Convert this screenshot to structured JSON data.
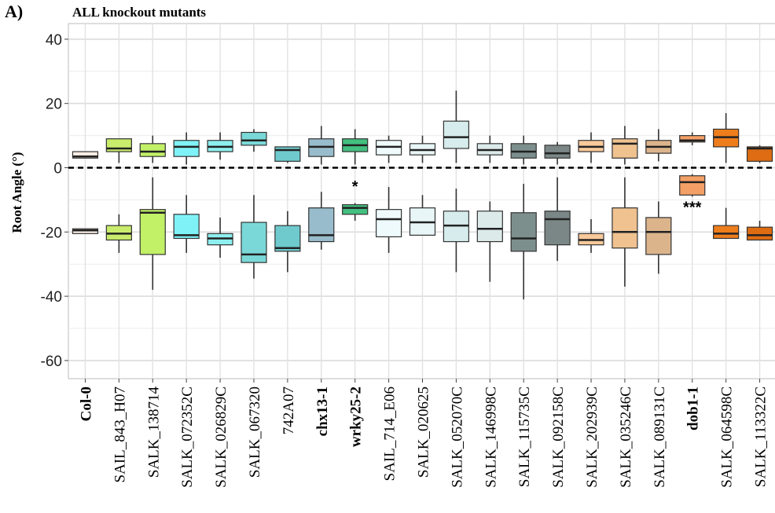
{
  "panel_label": "A)",
  "chart_data": {
    "type": "boxplot",
    "title": "ALL knockout mutants",
    "xlabel": "",
    "ylabel": "Root Angle (°)",
    "ylim": [
      -65,
      44
    ],
    "yticks": [
      40,
      20,
      0,
      -20,
      -40,
      -60
    ],
    "grid": true,
    "reference_line": {
      "y": 0,
      "style": "dashed"
    },
    "categories": [
      "Col-0",
      "SAIL_843_H07",
      "SALK_138714",
      "SALK_072352C",
      "SALK_026829C",
      "SALK_067320",
      "742A07",
      "chx13-1",
      "wrky25-2",
      "SAIL_714_E06",
      "SALK_020625",
      "SALK_052070C",
      "SALK_146998C",
      "SALK_115735C",
      "SALK_092158C",
      "SALK_202939C",
      "SALK_035246C",
      "SALK_089131C",
      "dob1-1",
      "SALK_064598C",
      "SALK_113322C"
    ],
    "bold_categories": [
      "Col-0",
      "chx13-1",
      "wrky25-2",
      "dob1-1"
    ],
    "colors": [
      "#fbeee6",
      "#c9ec6c",
      "#c2f067",
      "#7ff2f7",
      "#8eefef",
      "#7ad9d8",
      "#6ecacd",
      "#98bccc",
      "#43c07f",
      "#eefafb",
      "#e8f6f7",
      "#d7ecec",
      "#dceaea",
      "#7d8f8c",
      "#7a8786",
      "#f8c99a",
      "#efc290",
      "#dcb48c",
      "#f3a066",
      "#ee7d1c",
      "#de6c12"
    ],
    "series": [
      {
        "name": "",
        "boxes": [
          {
            "whisker_low": 3,
            "q1": 3,
            "median": 3.5,
            "q3": 5,
            "whisker_high": 5
          },
          {
            "whisker_low": 1.5,
            "q1": 5,
            "median": 6,
            "q3": 9,
            "whisker_high": 9
          },
          {
            "whisker_low": 1.5,
            "q1": 3.5,
            "median": 5,
            "q3": 7.5,
            "whisker_high": 10
          },
          {
            "whisker_low": 1,
            "q1": 3.5,
            "median": 6.5,
            "q3": 8.5,
            "whisker_high": 11
          },
          {
            "whisker_low": 2.5,
            "q1": 5,
            "median": 6.5,
            "q3": 8.5,
            "whisker_high": 11
          },
          {
            "whisker_low": 5,
            "q1": 7,
            "median": 8.5,
            "q3": 11,
            "whisker_high": 12
          },
          {
            "whisker_low": 1.5,
            "q1": 2,
            "median": 5.5,
            "q3": 6.5,
            "whisker_high": 6.5
          },
          {
            "whisker_low": 1,
            "q1": 3.5,
            "median": 6.5,
            "q3": 9,
            "whisker_high": 13
          },
          {
            "whisker_low": 1,
            "q1": 5,
            "median": 7,
            "q3": 9,
            "whisker_high": 12
          },
          {
            "whisker_low": 1.5,
            "q1": 4,
            "median": 6.5,
            "q3": 8.5,
            "whisker_high": 10
          },
          {
            "whisker_low": 1.5,
            "q1": 4,
            "median": 5.5,
            "q3": 7.5,
            "whisker_high": 10
          },
          {
            "whisker_low": 1.5,
            "q1": 6,
            "median": 9.5,
            "q3": 14.5,
            "whisker_high": 24
          },
          {
            "whisker_low": 1.5,
            "q1": 4,
            "median": 5.5,
            "q3": 7.5,
            "whisker_high": 10
          },
          {
            "whisker_low": 1,
            "q1": 3,
            "median": 5,
            "q3": 7.5,
            "whisker_high": 10
          },
          {
            "whisker_low": 1,
            "q1": 3,
            "median": 4.5,
            "q3": 7,
            "whisker_high": 8
          },
          {
            "whisker_low": 1.5,
            "q1": 5,
            "median": 6.5,
            "q3": 8.5,
            "whisker_high": 11
          },
          {
            "whisker_low": 1,
            "q1": 3,
            "median": 7.5,
            "q3": 9,
            "whisker_high": 13
          },
          {
            "whisker_low": 2,
            "q1": 4.5,
            "median": 6.5,
            "q3": 8.5,
            "whisker_high": 12
          },
          {
            "whisker_low": 7,
            "q1": 8,
            "median": 8.5,
            "q3": 10,
            "whisker_high": 11
          },
          {
            "whisker_low": 1.5,
            "q1": 6.5,
            "median": 9.5,
            "q3": 12,
            "whisker_high": 17
          },
          {
            "whisker_low": 1.5,
            "q1": 2,
            "median": 6,
            "q3": 6.5,
            "whisker_high": 7
          }
        ]
      },
      {
        "name": "",
        "boxes": [
          {
            "whisker_low": -20.5,
            "q1": -20.5,
            "median": -19.5,
            "q3": -19,
            "whisker_high": -19
          },
          {
            "whisker_low": -26.5,
            "q1": -22.5,
            "median": -20.5,
            "q3": -18,
            "whisker_high": -14.5
          },
          {
            "whisker_low": -38,
            "q1": -27,
            "median": -14,
            "q3": -13,
            "whisker_high": -3
          },
          {
            "whisker_low": -26.5,
            "q1": -22,
            "median": -21,
            "q3": -14.5,
            "whisker_high": -8.5
          },
          {
            "whisker_low": -28,
            "q1": -24,
            "median": -22,
            "q3": -20.5,
            "whisker_high": -15.5
          },
          {
            "whisker_low": -34.5,
            "q1": -29.5,
            "median": -27,
            "q3": -17,
            "whisker_high": -8.5
          },
          {
            "whisker_low": -32.5,
            "q1": -26,
            "median": -25,
            "q3": -18,
            "whisker_high": -13.5
          },
          {
            "whisker_low": -25.5,
            "q1": -23,
            "median": -21,
            "q3": -12.5,
            "whisker_high": -7.5
          },
          {
            "whisker_low": -16.5,
            "q1": -14.5,
            "median": -12.5,
            "q3": -11.5,
            "whisker_high": -11
          },
          {
            "whisker_low": -26.5,
            "q1": -21.5,
            "median": -16,
            "q3": -13,
            "whisker_high": -6
          },
          {
            "whisker_low": -21,
            "q1": -21,
            "median": -17,
            "q3": -12.5,
            "whisker_high": -8.5
          },
          {
            "whisker_low": -32.5,
            "q1": -23,
            "median": -18,
            "q3": -13.5,
            "whisker_high": -6.5
          },
          {
            "whisker_low": -35.5,
            "q1": -23,
            "median": -19,
            "q3": -13.5,
            "whisker_high": -10.5
          },
          {
            "whisker_low": -41,
            "q1": -26,
            "median": -22,
            "q3": -14,
            "whisker_high": -5
          },
          {
            "whisker_low": -29,
            "q1": -24,
            "median": -16,
            "q3": -13.5,
            "whisker_high": -3
          },
          {
            "whisker_low": -26.5,
            "q1": -24,
            "median": -22.5,
            "q3": -20.5,
            "whisker_high": -16
          },
          {
            "whisker_low": -37,
            "q1": -25,
            "median": -20,
            "q3": -12.5,
            "whisker_high": -3
          },
          {
            "whisker_low": -33,
            "q1": -27,
            "median": -20,
            "q3": -15.5,
            "whisker_high": -10.5
          },
          {
            "whisker_low": -9,
            "q1": -8.5,
            "median": -4.5,
            "q3": -2.5,
            "whisker_high": -2
          },
          {
            "whisker_low": -22,
            "q1": -22,
            "median": -20.5,
            "q3": -18,
            "whisker_high": -12.5
          },
          {
            "whisker_low": -22.5,
            "q1": -22.5,
            "median": -21,
            "q3": -18.5,
            "whisker_high": -16.5
          }
        ]
      }
    ],
    "annotations": [
      {
        "category": "wrky25-2",
        "text": "*",
        "y": -5.5
      },
      {
        "category": "dob1-1",
        "text": "***",
        "y": -12
      }
    ]
  }
}
